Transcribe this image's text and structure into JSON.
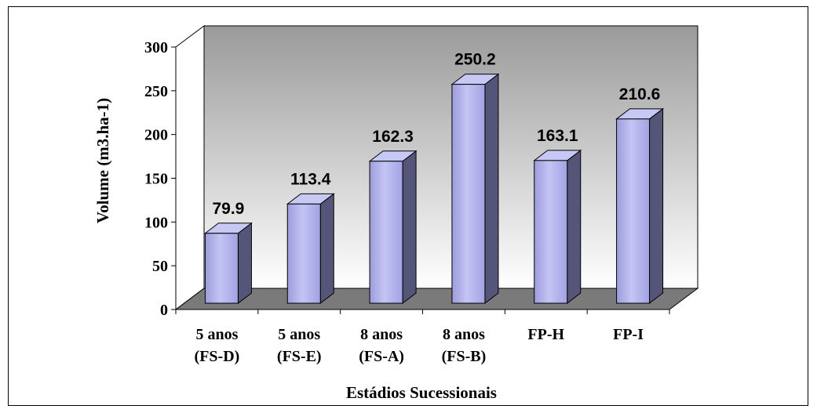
{
  "chart_data": {
    "type": "bar",
    "categories": [
      [
        "5 anos",
        "(FS-D)"
      ],
      [
        "5 anos",
        "(FS-E)"
      ],
      [
        "8 anos",
        "(FS-A)"
      ],
      [
        "8 anos",
        "(FS-B)"
      ],
      [
        "FP-H"
      ],
      [
        "FP-I"
      ]
    ],
    "values": [
      79.9,
      113.4,
      162.3,
      250.2,
      163.1,
      210.6
    ],
    "value_labels": [
      "79.9",
      "113.4",
      "162.3",
      "250.2",
      "163.1",
      "210.6"
    ],
    "yticks": [
      "0",
      "50",
      "100",
      "150",
      "200",
      "250",
      "300"
    ],
    "ylim": [
      0,
      300
    ],
    "xlabel": "Estádios Sucessionais",
    "ylabel": "Volume (m3.ha-1)",
    "style": "3d-column",
    "grid": false,
    "bar_color": "#aaaaee",
    "bar_side_color": "#55557a",
    "bar_top_color": "#c8c8f5",
    "wall_gradient": [
      "#9a9a9a",
      "#ffffff"
    ]
  }
}
